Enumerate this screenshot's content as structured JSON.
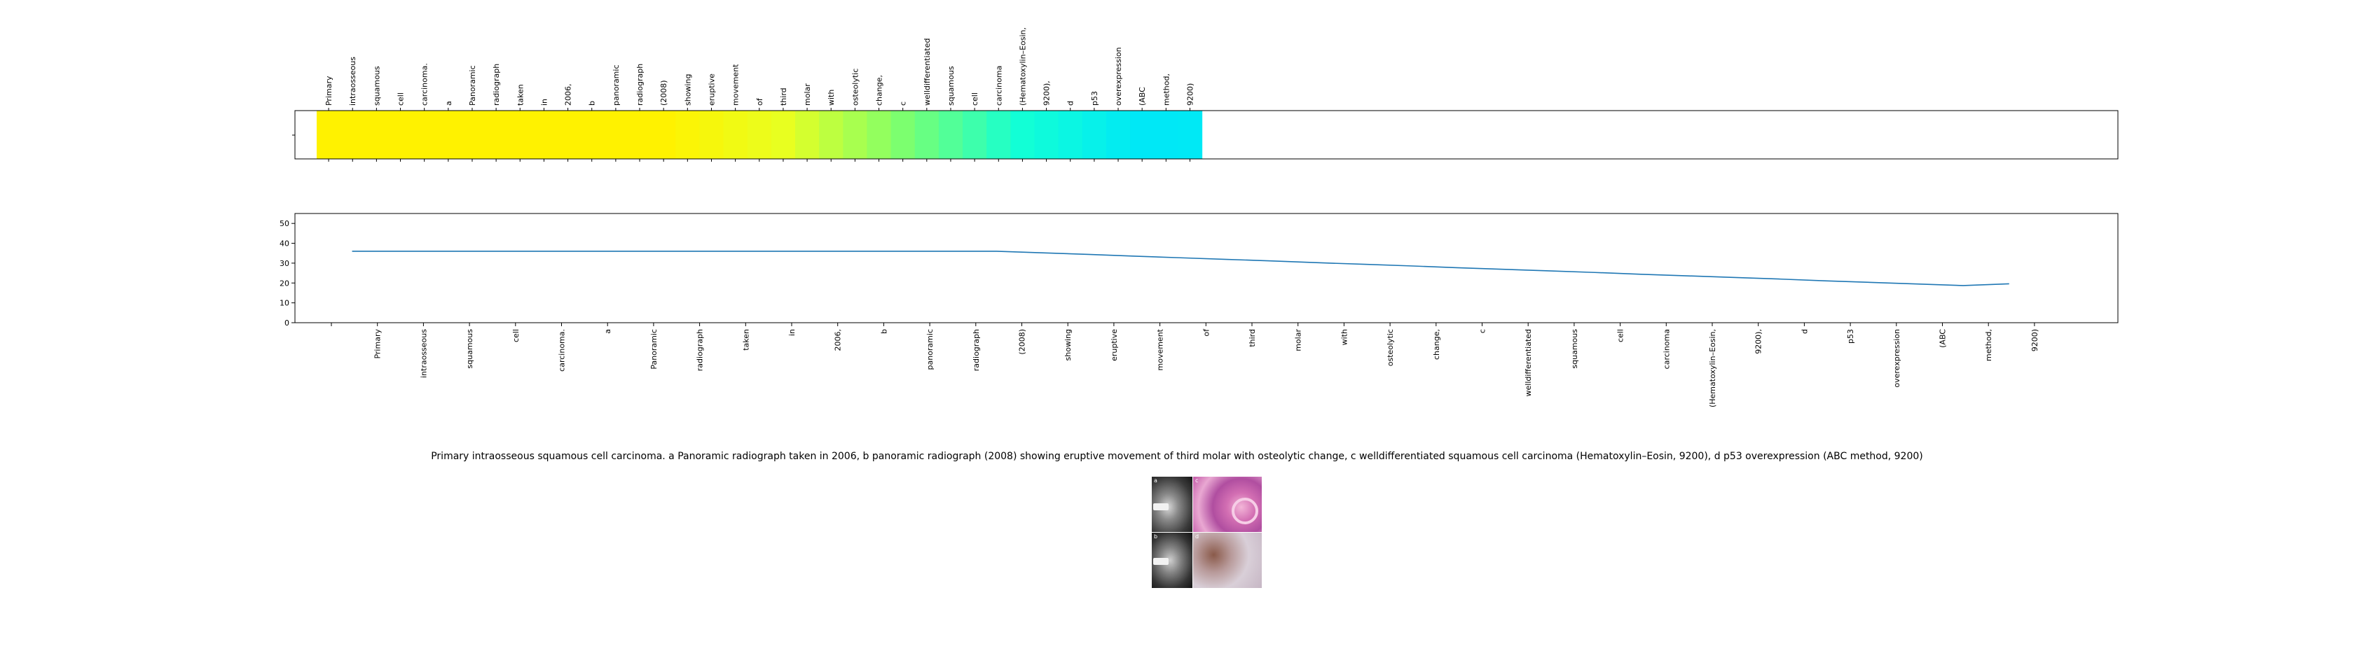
{
  "chart_data": [
    {
      "type": "heatmap",
      "tokens": [
        "Primary",
        "intraosseous",
        "squamous",
        "cell",
        "carcinoma.",
        "a",
        "Panoramic",
        "radiograph",
        "taken",
        "in",
        "2006,",
        "b",
        "panoramic",
        "radiograph",
        "(2008)",
        "showing",
        "eruptive",
        "movement",
        "of",
        "third",
        "molar",
        "with",
        "osteolytic",
        "change,",
        "c",
        "welldifferentiated",
        "squamous",
        "cell",
        "carcinoma",
        "(Hematoxylin–Eosin,",
        "9200),",
        "d",
        "p53",
        "overexpression",
        "(ABC",
        "method,",
        "9200)"
      ],
      "values": [
        36,
        36,
        36,
        36,
        36,
        36,
        36,
        36,
        36,
        36,
        36,
        36,
        36,
        36,
        36,
        35.2,
        34.4,
        33.5,
        32.7,
        31.9,
        31.1,
        30.2,
        29.4,
        28.6,
        27.7,
        26.9,
        26.1,
        25.3,
        24.4,
        23.6,
        22.8,
        22.0,
        21.1,
        20.3,
        19.5,
        18.7,
        19.6
      ],
      "colormap": [
        "#fff200",
        "#e8ff20",
        "#7dff6e",
        "#12ffd6",
        "#00e8f6"
      ],
      "color_range": [
        19.5,
        36
      ]
    },
    {
      "type": "line",
      "x": [
        "Primary",
        "intraosseous",
        "squamous",
        "cell",
        "carcinoma.",
        "a",
        "Panoramic",
        "radiograph",
        "taken",
        "in",
        "2006,",
        "b",
        "panoramic",
        "radiograph",
        "(2008)",
        "showing",
        "eruptive",
        "movement",
        "of",
        "third",
        "molar",
        "with",
        "osteolytic",
        "change,",
        "c",
        "welldifferentiated",
        "squamous",
        "cell",
        "carcinoma",
        "(Hematoxylin–Eosin,",
        "9200),",
        "d",
        "p53",
        "overexpression",
        "(ABC",
        "method,",
        "9200)"
      ],
      "series": [
        {
          "values": [
            36,
            36,
            36,
            36,
            36,
            36,
            36,
            36,
            36,
            36,
            36,
            36,
            36,
            36,
            36,
            35.2,
            34.4,
            33.5,
            32.7,
            31.9,
            31.1,
            30.2,
            29.4,
            28.6,
            27.7,
            26.9,
            26.1,
            25.3,
            24.4,
            23.6,
            22.8,
            22.0,
            21.1,
            20.3,
            19.5,
            18.7,
            19.6
          ],
          "color": "#1f77b4"
        }
      ],
      "yticks": [
        0,
        10,
        20,
        30,
        40,
        50
      ],
      "ylim": [
        0,
        55
      ],
      "grid": false
    }
  ],
  "caption": "Primary intraosseous squamous cell carcinoma. a Panoramic radiograph taken in 2006, b panoramic radiograph (2008) showing eruptive movement of third molar with osteolytic change, c welldifferentiated squamous cell carcinoma (Hematoxylin–Eosin, 9200), d p53 overexpression (ABC method, 9200)",
  "figure": {
    "panels": [
      {
        "letter": "a",
        "kind": "xray"
      },
      {
        "letter": "c",
        "kind": "he-stain"
      },
      {
        "letter": "b",
        "kind": "xray"
      },
      {
        "letter": "d",
        "kind": "ihc-stain"
      }
    ]
  }
}
